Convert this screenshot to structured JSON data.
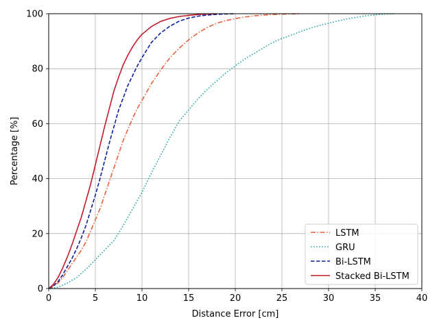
{
  "chart_data": {
    "type": "line",
    "title": "",
    "xlabel": "Distance Error [cm]",
    "ylabel": "Percentage [%]",
    "xlim": [
      0,
      40
    ],
    "ylim": [
      0,
      100
    ],
    "xticks": [
      0,
      5,
      10,
      15,
      20,
      25,
      30,
      35,
      40
    ],
    "yticks": [
      0,
      20,
      40,
      60,
      80,
      100
    ],
    "grid": true,
    "legend_position": "bottom-right",
    "series": [
      {
        "name": "LSTM",
        "color": "#e8603c",
        "dash": "dashdot",
        "x": [
          0,
          0.5,
          1,
          1.5,
          2,
          2.5,
          3,
          3.5,
          4,
          4.5,
          5,
          5.5,
          6,
          6.5,
          7,
          7.5,
          8,
          8.5,
          9,
          9.5,
          10,
          11,
          12,
          13,
          14,
          15,
          16,
          17,
          18,
          19,
          20,
          21,
          22,
          23,
          24,
          25,
          27
        ],
        "y": [
          0,
          0.8,
          2,
          4,
          6.5,
          9,
          11.5,
          14,
          17,
          21,
          25,
          29,
          34,
          39,
          44,
          49,
          54,
          58,
          62,
          65.5,
          68.5,
          74.5,
          79.5,
          84,
          87.5,
          90.5,
          93,
          95,
          96.5,
          97.5,
          98.2,
          98.8,
          99.2,
          99.5,
          99.7,
          99.85,
          100
        ]
      },
      {
        "name": "GRU",
        "color": "#17a2a8",
        "dash": "dotted",
        "x": [
          0,
          1,
          2,
          3,
          4,
          5,
          6,
          7,
          8,
          9,
          10,
          11,
          12,
          13,
          14,
          15,
          16,
          17,
          18,
          19,
          20,
          21,
          22,
          23,
          24,
          25,
          26,
          27,
          28,
          29,
          30,
          31,
          32,
          33,
          34,
          35,
          36,
          37
        ],
        "y": [
          0,
          0.5,
          2,
          4,
          7,
          10.5,
          14,
          17.5,
          23,
          29,
          35,
          42,
          48.5,
          55,
          61,
          65,
          69,
          72.5,
          75.5,
          78.5,
          81,
          83.5,
          85.5,
          87.5,
          89.5,
          91,
          92.2,
          93.5,
          94.7,
          95.7,
          96.5,
          97.4,
          98.1,
          98.7,
          99.2,
          99.6,
          99.85,
          100
        ]
      },
      {
        "name": "Bi-LSTM",
        "color": "#0a1f9c",
        "dash": "dashed",
        "x": [
          0,
          0.5,
          1,
          1.5,
          2,
          2.5,
          3,
          3.5,
          4,
          4.5,
          5,
          5.5,
          6,
          6.5,
          7,
          7.5,
          8,
          8.5,
          9,
          9.5,
          10,
          11,
          12,
          13,
          14,
          15,
          16,
          17,
          18,
          19,
          20
        ],
        "y": [
          0,
          1,
          2.5,
          5,
          8,
          11,
          14.5,
          18.5,
          23,
          28.5,
          34,
          40,
          46.5,
          53,
          59,
          65,
          69.5,
          74,
          77.5,
          81,
          84,
          89.5,
          93,
          95.5,
          97.3,
          98.4,
          99.1,
          99.5,
          99.75,
          99.9,
          100
        ]
      },
      {
        "name": "Stacked Bi-LSTM",
        "color": "#c01a2a",
        "dash": "solid",
        "x": [
          0,
          0.5,
          1,
          1.5,
          2,
          2.5,
          3,
          3.5,
          4,
          4.5,
          5,
          5.5,
          6,
          6.5,
          7,
          7.5,
          8,
          8.5,
          9,
          9.5,
          10,
          11,
          12,
          13,
          14,
          15,
          16,
          17,
          18
        ],
        "y": [
          0,
          1.5,
          4,
          7.5,
          11.5,
          16,
          21,
          26,
          32,
          38,
          45,
          52,
          59,
          65.5,
          72,
          77,
          81.5,
          85,
          88,
          90.5,
          92.5,
          95.3,
          97.2,
          98.3,
          99,
          99.4,
          99.7,
          99.9,
          100
        ]
      }
    ]
  }
}
